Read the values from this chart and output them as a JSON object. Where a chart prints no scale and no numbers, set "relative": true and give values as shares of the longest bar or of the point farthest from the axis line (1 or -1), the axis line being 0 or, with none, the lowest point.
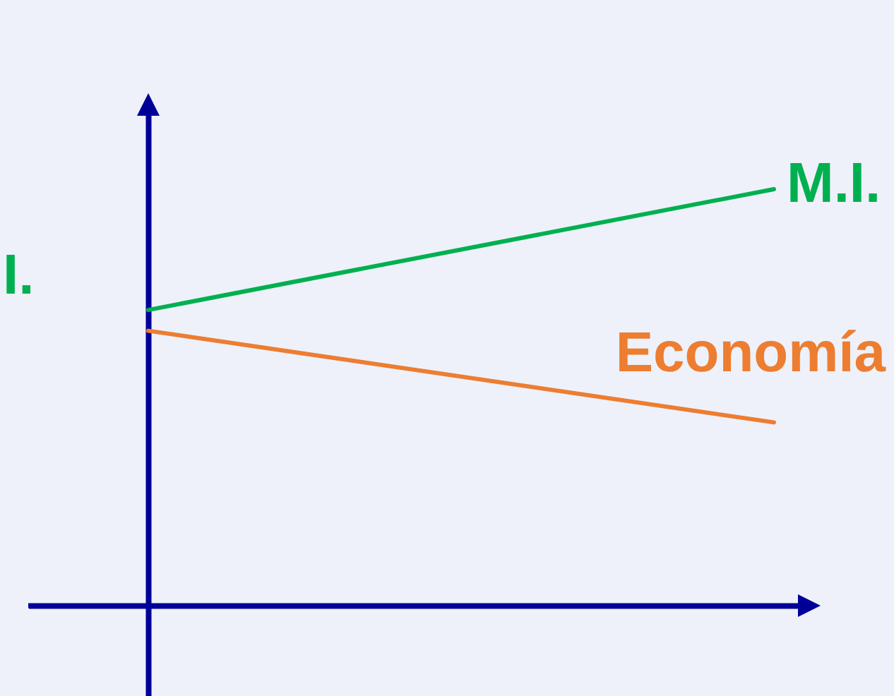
{
  "chart_data": {
    "type": "line",
    "relative": true,
    "categories": [
      null,
      null
    ],
    "annotations": [
      "I."
    ],
    "series": [
      {
        "name": "M.I.",
        "color": "#00b050",
        "values": [
          0.71,
          1.0
        ]
      },
      {
        "name": "Economía",
        "color": "#ed7d31",
        "values": [
          0.66,
          0.44
        ]
      }
    ]
  }
}
